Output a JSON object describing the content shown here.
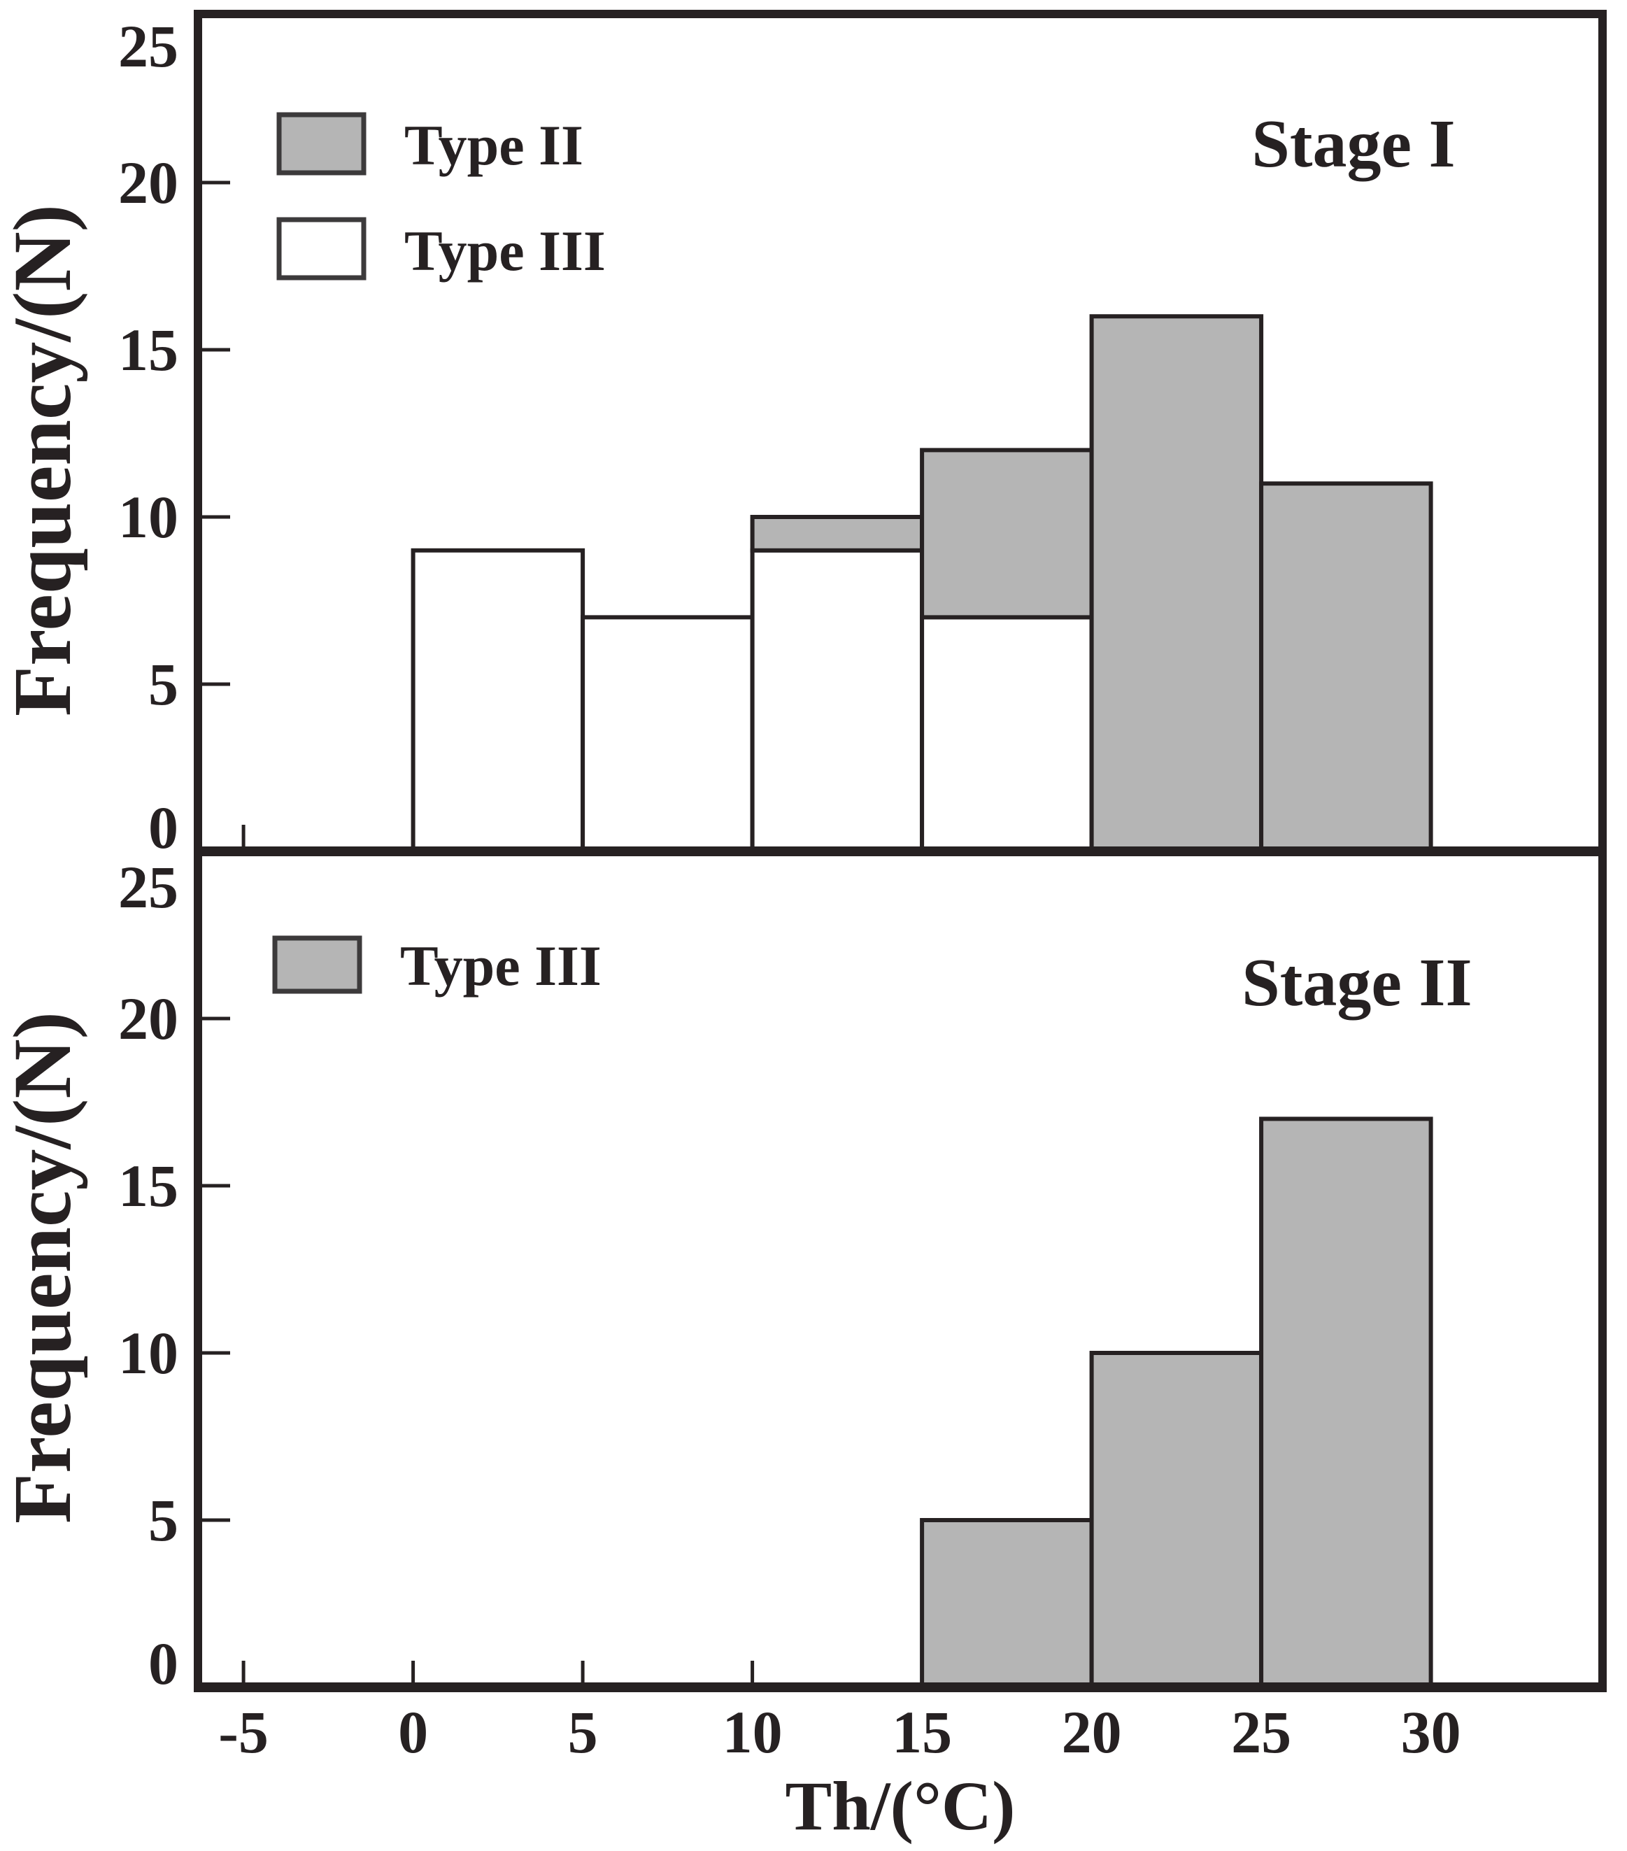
{
  "figure": {
    "colors": {
      "bar_gray": "#b5b5b5",
      "bar_white": "#ffffff",
      "ink": "#262122",
      "background": "#ffffff"
    }
  },
  "chart_data": [
    {
      "type": "bar",
      "subtype": "stacked-histogram",
      "title": "Stage I",
      "bin_edges": [
        0,
        5,
        10,
        15,
        20,
        25,
        30
      ],
      "categories": [
        "0-5",
        "5-10",
        "10-15",
        "15-20",
        "20-25",
        "25-30"
      ],
      "series": [
        {
          "name": "Type III",
          "style": "white",
          "values": [
            9,
            7,
            9,
            7,
            0,
            0
          ]
        },
        {
          "name": "Type II",
          "style": "gray",
          "values": [
            0,
            0,
            1,
            5,
            16,
            11
          ]
        }
      ],
      "stacked": true,
      "xlabel": "Th/(°C)",
      "ylabel": "Frequency/(N)",
      "ylim": [
        0,
        25
      ],
      "x_ticks": [
        -5,
        0,
        5,
        10,
        15,
        20,
        25,
        30
      ],
      "y_ticks": [
        0,
        5,
        10,
        15,
        20,
        25
      ],
      "legend_position": "top-left",
      "legend_order": [
        "Type II",
        "Type III"
      ],
      "grid": false
    },
    {
      "type": "bar",
      "subtype": "histogram",
      "title": "Stage II",
      "bin_edges": [
        0,
        5,
        10,
        15,
        20,
        25,
        30
      ],
      "categories": [
        "0-5",
        "5-10",
        "10-15",
        "15-20",
        "20-25",
        "25-30"
      ],
      "series": [
        {
          "name": "Type III",
          "style": "gray",
          "values": [
            0,
            0,
            0,
            5,
            10,
            17
          ]
        }
      ],
      "stacked": false,
      "xlabel": "Th/(°C)",
      "ylabel": "Frequency/(N)",
      "ylim": [
        0,
        25
      ],
      "x_ticks": [
        -5,
        0,
        5,
        10,
        15,
        20,
        25,
        30
      ],
      "y_ticks": [
        0,
        5,
        10,
        15,
        20,
        25
      ],
      "legend_position": "top-left",
      "legend_order": [
        "Type III"
      ],
      "grid": false
    }
  ]
}
